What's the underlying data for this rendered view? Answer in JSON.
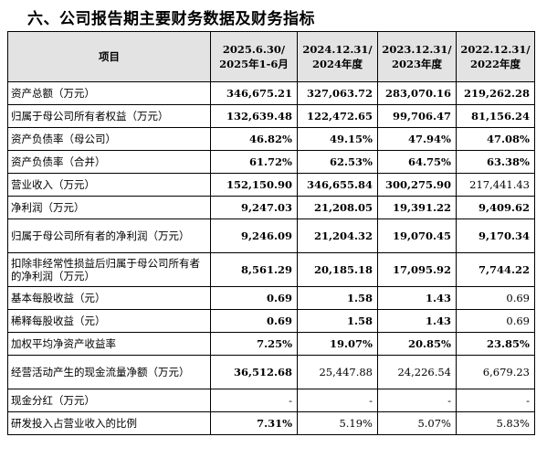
{
  "heading": "六、公司报告期主要财务数据及财务指标",
  "table": {
    "header": {
      "item": "项目",
      "periods": [
        {
          "line1": "2025.6.30/",
          "line2": "2025年1-6月"
        },
        {
          "line1": "2024.12.31/",
          "line2": "2024年度"
        },
        {
          "line1": "2023.12.31/",
          "line2": "2023年度"
        },
        {
          "line1": "2022.12.31/",
          "line2": "2022年度"
        }
      ]
    },
    "rows": [
      {
        "label": "资产总额（万元）",
        "values": [
          "346,675.21",
          "327,063.72",
          "283,070.16",
          "219,262.28"
        ]
      },
      {
        "label": "归属于母公司所有者权益（万元）",
        "values": [
          "132,639.48",
          "122,472.65",
          "99,706.47",
          "81,156.24"
        ]
      },
      {
        "label": "资产负债率（母公司）",
        "values": [
          "46.82%",
          "49.15%",
          "47.94%",
          "47.08%"
        ]
      },
      {
        "label": "资产负债率（合并）",
        "values": [
          "61.72%",
          "62.53%",
          "64.75%",
          "63.38%"
        ]
      },
      {
        "label": "营业收入（万元）",
        "values": [
          "152,150.90",
          "346,655.84",
          "300,275.90",
          "217,441.43"
        ]
      },
      {
        "label": "净利润（万元）",
        "values": [
          "9,247.03",
          "21,208.05",
          "19,391.22",
          "9,409.62"
        ]
      },
      {
        "label": "归属于母公司所有者的净利润（万元）",
        "values": [
          "9,246.09",
          "21,204.32",
          "19,070.45",
          "9,170.34"
        ]
      },
      {
        "label": "扣除非经常性损益后归属于母公司所有者的净利润（万元）",
        "values": [
          "8,561.29",
          "20,185.18",
          "17,095.92",
          "7,744.22"
        ]
      },
      {
        "label": "基本每股收益（元）",
        "values": [
          "0.69",
          "1.58",
          "1.43",
          "0.69"
        ]
      },
      {
        "label": "稀释每股收益（元）",
        "values": [
          "0.69",
          "1.58",
          "1.43",
          "0.69"
        ]
      },
      {
        "label": "加权平均净资产收益率",
        "values": [
          "7.25%",
          "19.07%",
          "20.85%",
          "23.85%"
        ]
      },
      {
        "label": "经营活动产生的现金流量净额（万元）",
        "values": [
          "36,512.68",
          "25,447.88",
          "24,226.54",
          "6,679.23"
        ]
      },
      {
        "label": "现金分红（万元）",
        "values": [
          "-",
          "-",
          "-",
          "-"
        ]
      },
      {
        "label": "研发投入占营业收入的比例",
        "values": [
          "7.31%",
          "5.19%",
          "5.07%",
          "5.83%"
        ]
      }
    ]
  }
}
